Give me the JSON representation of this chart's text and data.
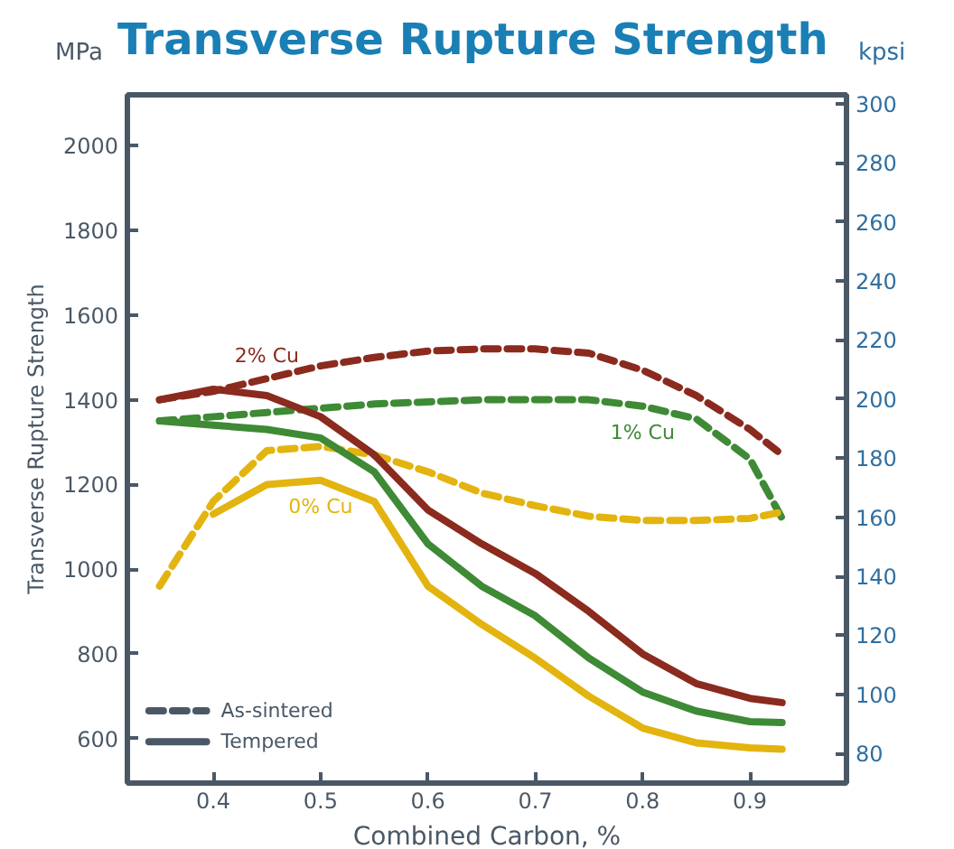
{
  "chart_data": {
    "type": "line",
    "title": "Transverse Rupture Strength",
    "xlabel": "Combined Carbon, %",
    "ylabel": "Transverse Rupture Strength",
    "y2label": "kpsi",
    "x": [
      0.35,
      0.4,
      0.45,
      0.5,
      0.55,
      0.6,
      0.65,
      0.7,
      0.75,
      0.8,
      0.85,
      0.9,
      0.93
    ],
    "xlim": [
      0.32,
      0.99
    ],
    "xticks": [
      0.4,
      0.5,
      0.6,
      0.7,
      0.8,
      0.9
    ],
    "ylim": [
      495,
      2120
    ],
    "yticks": [
      600,
      800,
      1000,
      1200,
      1400,
      1600,
      1800,
      2000
    ],
    "y2lim": [
      70,
      303
    ],
    "y2ticks": [
      80,
      100,
      120,
      140,
      160,
      180,
      200,
      220,
      240,
      260,
      280,
      300
    ],
    "series": [
      {
        "color": "#8b2a1e",
        "line_style": "dashed",
        "values": [
          1400,
          1420,
          1450,
          1480,
          1500,
          1515,
          1520,
          1520,
          1510,
          1470,
          1410,
          1330,
          1270
        ]
      },
      {
        "color": "#3e8a35",
        "line_style": "dashed",
        "values": [
          1350,
          1360,
          1370,
          1380,
          1390,
          1395,
          1400,
          1400,
          1400,
          1385,
          1355,
          1260,
          1120
        ]
      },
      {
        "color": "#e3b40f",
        "line_style": "dashed",
        "values": [
          960,
          1160,
          1280,
          1290,
          1270,
          1230,
          1180,
          1150,
          1125,
          1115,
          1115,
          1120,
          1135
        ]
      },
      {
        "color": "#8b2a1e",
        "line_style": "solid",
        "values": [
          1400,
          1425,
          1410,
          1360,
          1270,
          1140,
          1060,
          990,
          900,
          800,
          730,
          695,
          685
        ]
      },
      {
        "color": "#3e8a35",
        "line_style": "solid",
        "values": [
          1350,
          1340,
          1330,
          1310,
          1230,
          1060,
          960,
          890,
          790,
          710,
          665,
          640,
          638
        ]
      },
      {
        "color": "#e3b40f",
        "line_style": "solid",
        "values": [
          null,
          1130,
          1200,
          1210,
          1160,
          960,
          870,
          790,
          700,
          625,
          590,
          578,
          575
        ]
      }
    ],
    "annotations": [
      "MPa",
      {
        "text": "2% Cu",
        "x": 0.45,
        "y": 1450
      },
      {
        "text": "1% Cu",
        "x": 0.8,
        "y": 1385
      },
      {
        "text": "0% Cu",
        "x": 0.5,
        "y": 1210
      },
      "As-sintered",
      "Tempered"
    ],
    "grid": false
  }
}
